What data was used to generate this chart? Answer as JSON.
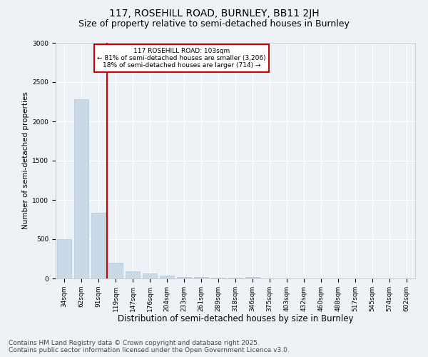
{
  "title1": "117, ROSEHILL ROAD, BURNLEY, BB11 2JH",
  "title2": "Size of property relative to semi-detached houses in Burnley",
  "xlabel": "Distribution of semi-detached houses by size in Burnley",
  "ylabel": "Number of semi-detached properties",
  "categories": [
    "34sqm",
    "62sqm",
    "91sqm",
    "119sqm",
    "147sqm",
    "176sqm",
    "204sqm",
    "233sqm",
    "261sqm",
    "289sqm",
    "318sqm",
    "346sqm",
    "375sqm",
    "403sqm",
    "432sqm",
    "460sqm",
    "488sqm",
    "517sqm",
    "545sqm",
    "574sqm",
    "602sqm"
  ],
  "values": [
    500,
    2280,
    840,
    200,
    90,
    60,
    35,
    20,
    15,
    10,
    5,
    20,
    3,
    2,
    1,
    0,
    0,
    0,
    0,
    0,
    0
  ],
  "bar_color": "#c9d9e8",
  "bar_edge_color": "#b0c4d8",
  "vline_x_index": 2.5,
  "vline_color": "#cc0000",
  "annotation_title": "117 ROSEHILL ROAD: 103sqm",
  "annotation_line1": "← 81% of semi-detached houses are smaller (3,206)",
  "annotation_line2": "18% of semi-detached houses are larger (714) →",
  "annotation_box_color": "#cc0000",
  "ylim": [
    0,
    3000
  ],
  "yticks": [
    0,
    500,
    1000,
    1500,
    2000,
    2500,
    3000
  ],
  "footer1": "Contains HM Land Registry data © Crown copyright and database right 2025.",
  "footer2": "Contains public sector information licensed under the Open Government Licence v3.0.",
  "bg_color": "#eef2f7",
  "plot_bg_color": "#eef2f7",
  "grid_color": "#ffffff",
  "title1_fontsize": 10,
  "title2_fontsize": 9,
  "xlabel_fontsize": 8.5,
  "ylabel_fontsize": 7.5,
  "tick_fontsize": 6.5,
  "footer_fontsize": 6.5
}
